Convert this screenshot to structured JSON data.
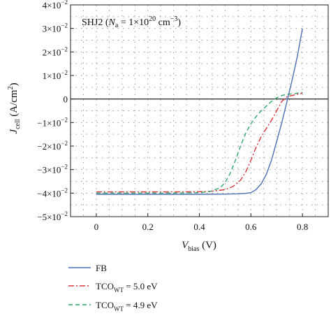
{
  "chart_data": {
    "type": "line",
    "title": "",
    "annotation": {
      "prefix": "SHJ2 (",
      "var": "N",
      "var_sub": "a",
      "eq": " = 1×10",
      "exp": "20",
      "unit": " cm",
      "unit_exp": "−3",
      "suffix": ")"
    },
    "xlabel": {
      "main": "V",
      "sub": "bias",
      "unit": " (V)"
    },
    "ylabel": {
      "main": "J",
      "sub": "cell",
      "unit_open": " (A/cm",
      "unit_exp": "2",
      "unit_close": ")"
    },
    "xlim": [
      -0.1,
      0.9
    ],
    "ylim": [
      -0.05,
      0.04
    ],
    "grid": true,
    "x_ticks": [
      {
        "value": 0,
        "label": "0"
      },
      {
        "value": 0.2,
        "label": "0.2"
      },
      {
        "value": 0.4,
        "label": "0.4"
      },
      {
        "value": 0.6,
        "label": "0.6"
      },
      {
        "value": 0.8,
        "label": "0.8"
      }
    ],
    "y_ticks": [
      {
        "value": 0.04,
        "label": "4×10",
        "exp": "−2"
      },
      {
        "value": 0.03,
        "label": "3×10",
        "exp": "−2"
      },
      {
        "value": 0.02,
        "label": "2×10",
        "exp": "−2"
      },
      {
        "value": 0.01,
        "label": "1×10",
        "exp": "−2"
      },
      {
        "value": 0,
        "label": "0",
        "exp": ""
      },
      {
        "value": -0.01,
        "label": "−1×10",
        "exp": "−2"
      },
      {
        "value": -0.02,
        "label": "−2×10",
        "exp": "−2"
      },
      {
        "value": -0.03,
        "label": "−3×10",
        "exp": "−2"
      },
      {
        "value": -0.04,
        "label": "−4×10",
        "exp": "−2"
      },
      {
        "value": -0.05,
        "label": "−5×10",
        "exp": "−2"
      }
    ],
    "legend_position": "bottom",
    "series": [
      {
        "name": "FB",
        "legend": {
          "main": "FB",
          "sub": "",
          "rest": ""
        },
        "color": "#4a6fb5",
        "dash": "",
        "x": [
          0,
          0.1,
          0.2,
          0.3,
          0.4,
          0.5,
          0.55,
          0.58,
          0.6,
          0.62,
          0.64,
          0.66,
          0.68,
          0.7,
          0.72,
          0.74,
          0.76,
          0.78,
          0.8
        ],
        "y": [
          -0.0405,
          -0.0405,
          -0.0405,
          -0.0405,
          -0.0405,
          -0.0404,
          -0.0403,
          -0.0401,
          -0.0398,
          -0.0385,
          -0.036,
          -0.032,
          -0.026,
          -0.018,
          -0.01,
          -0.001,
          0.008,
          0.018,
          0.03
        ]
      },
      {
        "name": "TCO_WT = 5.0 eV",
        "legend": {
          "main": "TCO",
          "sub": "WT",
          "rest": " = 5.0 eV"
        },
        "color": "#d9333a",
        "dash": "8,3,2,3",
        "x": [
          0,
          0.1,
          0.2,
          0.3,
          0.4,
          0.45,
          0.5,
          0.53,
          0.56,
          0.58,
          0.6,
          0.62,
          0.64,
          0.66,
          0.68,
          0.7,
          0.72,
          0.74,
          0.76,
          0.78,
          0.8
        ],
        "y": [
          -0.0395,
          -0.0395,
          -0.0395,
          -0.0395,
          -0.0394,
          -0.0392,
          -0.0385,
          -0.0372,
          -0.0345,
          -0.031,
          -0.026,
          -0.0205,
          -0.016,
          -0.0125,
          -0.009,
          -0.005,
          -0.001,
          0.001,
          0.0015,
          0.002,
          0.0025
        ]
      },
      {
        "name": "TCO_WT = 4.9 eV",
        "legend": {
          "main": "TCO",
          "sub": "WT",
          "rest": " = 4.9 eV"
        },
        "color": "#2fa86a",
        "dash": "6,4",
        "x": [
          0,
          0.1,
          0.2,
          0.3,
          0.4,
          0.44,
          0.48,
          0.5,
          0.52,
          0.54,
          0.56,
          0.58,
          0.6,
          0.62,
          0.64,
          0.66,
          0.68,
          0.7,
          0.72,
          0.74,
          0.76,
          0.78,
          0.8
        ],
        "y": [
          -0.04,
          -0.04,
          -0.04,
          -0.04,
          -0.0398,
          -0.0393,
          -0.0378,
          -0.0355,
          -0.0315,
          -0.026,
          -0.02,
          -0.0145,
          -0.0105,
          -0.0075,
          -0.005,
          -0.003,
          -0.001,
          0.0005,
          0.0015,
          0.002,
          0.0022,
          0.0025,
          0.0028
        ]
      }
    ]
  }
}
